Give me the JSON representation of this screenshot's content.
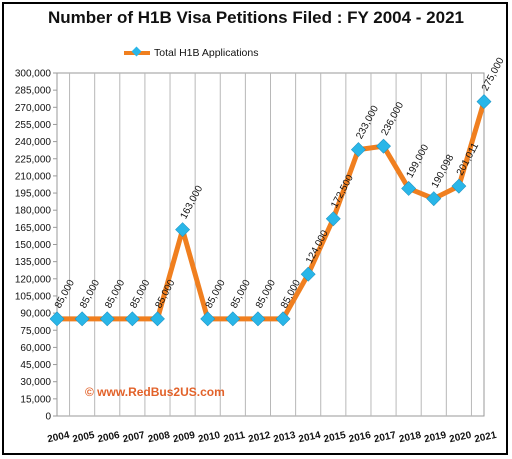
{
  "chart_data": {
    "type": "line",
    "title": "Number of H1B Visa  Petitions Filed : FY 2004 - 2021",
    "xlabel": "",
    "ylabel": "",
    "legend": "top-left",
    "grid": "vertical",
    "ylim": [
      0,
      300000
    ],
    "ytick_step": 15000,
    "categories": [
      "2004",
      "2005",
      "2006",
      "2007",
      "2008",
      "2009",
      "2010",
      "2011",
      "2012",
      "2013",
      "2014",
      "2015",
      "2016",
      "2017",
      "2018",
      "2019",
      "2020",
      "2021"
    ],
    "series": [
      {
        "name": "Total H1B Applications",
        "values": [
          85000,
          85000,
          85000,
          85000,
          85000,
          163000,
          85000,
          85000,
          85000,
          85000,
          124000,
          172500,
          233000,
          236000,
          199000,
          190098,
          201011,
          275000
        ],
        "labels": [
          "85,000",
          "85,000",
          "85,000",
          "85,000",
          "85,000",
          "163,000",
          "85,000",
          "85,000",
          "85,000",
          "85,000",
          "124,000",
          "172,500",
          "233,000",
          "236,000",
          "199,000",
          "190,098",
          "201,011",
          "275,000"
        ]
      }
    ],
    "annotation": "© www.RedBus2US.com",
    "colors": {
      "line": "#f07f1f",
      "marker": "#29b6e8",
      "watermark": "#e2622a"
    }
  }
}
